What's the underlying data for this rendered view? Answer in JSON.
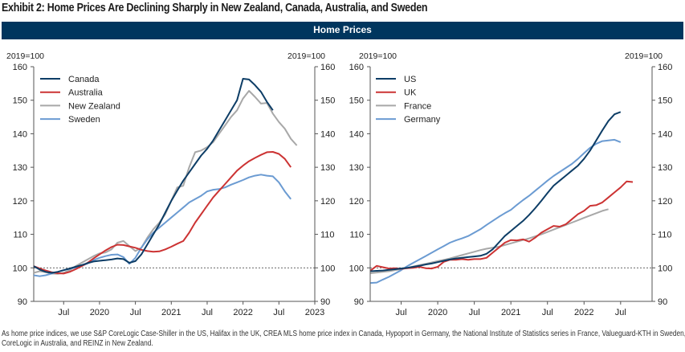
{
  "title": "Exhibit 2: Home Prices Are Declining Sharply in New Zealand, Canada, Australia, and Sweden",
  "banner": "Home Prices",
  "footnote": "As home price indices, we use S&P CoreLogic Case-Shiller in the US, Halifax in the UK, CREA MLS home price index in Canada, Hypoport in Germany, the National Institute of Statistics series in France, Valueguard-KTH in Sweden, CoreLogic in Australia, and REINZ in New Zealand.",
  "colors": {
    "dark_blue": "#0d3d66",
    "red": "#cc3333",
    "gray": "#a8a8a8",
    "light_blue": "#6b9bd2"
  },
  "chart_data": [
    {
      "type": "line",
      "title": "",
      "ylabel_left": "2019=100",
      "ylabel_right": "2019=100",
      "ylim": [
        90,
        160
      ],
      "yticks": [
        90,
        100,
        110,
        120,
        130,
        140,
        150,
        160
      ],
      "xlim": [
        2019.083,
        2023.0
      ],
      "xticks": [
        {
          "t": 2019.5,
          "label": "Jul"
        },
        {
          "t": 2020.0,
          "label": "2020"
        },
        {
          "t": 2020.5,
          "label": "Jul"
        },
        {
          "t": 2021.0,
          "label": "2021"
        },
        {
          "t": 2021.5,
          "label": "Jul"
        },
        {
          "t": 2022.0,
          "label": "2022"
        },
        {
          "t": 2022.5,
          "label": "Jul"
        },
        {
          "t": 2023.0,
          "label": "2023"
        }
      ],
      "reference_line": 100,
      "legend_position": "top-left",
      "start": 2019.083,
      "step_months": 1,
      "series": [
        {
          "name": "Canada",
          "color_key": "dark_blue",
          "values": [
            100.5,
            99.5,
            98.8,
            98.5,
            98.8,
            99.3,
            99.8,
            100.3,
            100.8,
            101.4,
            101.9,
            102.1,
            102.3,
            102.5,
            102.8,
            102.6,
            101.5,
            102.0,
            104.0,
            107.0,
            110.0,
            113.0,
            116.5,
            120.0,
            123.0,
            126.0,
            128.5,
            131.0,
            133.5,
            135.5,
            138.0,
            141.0,
            144.0,
            147.0,
            150.0,
            156.4,
            156.2,
            154.5,
            152.5,
            149.5,
            147.0
          ]
        },
        {
          "name": "Australia",
          "color_key": "red",
          "values": [
            100.5,
            99.8,
            99.2,
            98.7,
            98.4,
            98.3,
            98.8,
            99.6,
            100.5,
            101.5,
            102.8,
            104.0,
            105.2,
            106.2,
            106.9,
            106.8,
            106.4,
            106.0,
            105.4,
            105.0,
            104.8,
            104.9,
            105.5,
            106.3,
            107.2,
            108.0,
            110.5,
            113.5,
            116.0,
            118.5,
            121.0,
            123.0,
            125.0,
            127.0,
            129.0,
            130.5,
            131.8,
            132.8,
            133.7,
            134.5,
            134.6,
            134.0,
            132.5,
            130.0
          ]
        },
        {
          "name": "New Zealand",
          "color_key": "gray",
          "values": [
            98.5,
            99.0,
            98.7,
            98.3,
            98.2,
            98.5,
            99.3,
            100.5,
            101.5,
            102.5,
            103.5,
            104.3,
            104.6,
            105.5,
            107.5,
            108.0,
            106.5,
            105.0,
            106.0,
            109.0,
            111.5,
            113.5,
            116.0,
            120.0,
            124.0,
            124.5,
            130.0,
            134.5,
            135.0,
            136.0,
            137.5,
            140.0,
            142.5,
            145.0,
            147.0,
            150.5,
            152.8,
            151.0,
            149.0,
            149.2,
            146.0,
            143.5,
            141.5,
            138.5,
            136.5
          ]
        },
        {
          "name": "Sweden",
          "color_key": "light_blue",
          "values": [
            97.8,
            97.5,
            97.8,
            98.3,
            98.8,
            99.3,
            99.7,
            100.1,
            100.6,
            101.3,
            102.3,
            103.0,
            103.5,
            103.9,
            104.0,
            103.2,
            101.2,
            103.0,
            106.0,
            108.5,
            110.5,
            112.0,
            113.5,
            115.0,
            116.5,
            118.0,
            119.5,
            120.5,
            121.5,
            122.8,
            123.3,
            123.5,
            124.0,
            124.8,
            125.5,
            126.2,
            127.0,
            127.5,
            127.8,
            127.5,
            127.3,
            125.5,
            122.8,
            120.5
          ]
        }
      ]
    },
    {
      "type": "line",
      "title": "",
      "ylabel_left": "2019=100",
      "ylabel_right": "2019=100",
      "ylim": [
        90,
        160
      ],
      "yticks": [
        90,
        100,
        110,
        120,
        130,
        140,
        150,
        160
      ],
      "xlim": [
        2019.077,
        2022.93
      ],
      "xticks": [
        {
          "t": 2019.5,
          "label": "Jul"
        },
        {
          "t": 2020.0,
          "label": "2020"
        },
        {
          "t": 2020.5,
          "label": "Jul"
        },
        {
          "t": 2021.0,
          "label": "2021"
        },
        {
          "t": 2021.5,
          "label": "Jul"
        },
        {
          "t": 2022.0,
          "label": "2022"
        },
        {
          "t": 2022.5,
          "label": "Jul"
        }
      ],
      "reference_line": 100,
      "legend_position": "top-left",
      "start": 2019.083,
      "step_months": 1,
      "series": [
        {
          "name": "US",
          "color_key": "dark_blue",
          "values": [
            99.0,
            99.1,
            99.2,
            99.4,
            99.6,
            99.8,
            100.0,
            100.3,
            100.6,
            101.0,
            101.3,
            101.7,
            102.1,
            102.5,
            102.8,
            103.0,
            103.2,
            103.4,
            103.6,
            104.2,
            105.5,
            107.5,
            109.5,
            111.0,
            112.5,
            114.0,
            115.8,
            117.8,
            120.0,
            122.3,
            124.5,
            126.0,
            127.5,
            129.0,
            130.5,
            132.5,
            135.0,
            138.0,
            141.0,
            143.8,
            145.8,
            146.5
          ]
        },
        {
          "name": "UK",
          "color_key": "red",
          "values": [
            99.2,
            100.6,
            100.2,
            99.8,
            99.9,
            99.7,
            99.9,
            100.0,
            100.3,
            99.9,
            99.8,
            100.3,
            101.8,
            102.4,
            102.4,
            102.6,
            102.4,
            102.6,
            102.6,
            103.0,
            104.5,
            106.0,
            107.5,
            108.3,
            108.2,
            108.5,
            107.8,
            109.0,
            110.5,
            111.5,
            112.5,
            112.3,
            113.0,
            114.5,
            116.0,
            117.0,
            118.5,
            118.7,
            119.5,
            121.0,
            122.5,
            124.0,
            125.8,
            125.6
          ]
        },
        {
          "name": "France",
          "color_key": "gray",
          "values": [
            98.4,
            98.6,
            98.8,
            99.0,
            99.3,
            99.6,
            100.0,
            100.4,
            100.8,
            101.2,
            101.6,
            102.0,
            102.4,
            102.8,
            103.3,
            103.8,
            104.3,
            104.8,
            105.3,
            105.7,
            106.0,
            106.3,
            106.8,
            107.3,
            107.8,
            108.3,
            108.8,
            109.4,
            110.0,
            110.7,
            111.4,
            112.1,
            112.8,
            113.5,
            114.2,
            114.9,
            115.6,
            116.3,
            117.0,
            117.5
          ]
        },
        {
          "name": "Germany",
          "color_key": "light_blue",
          "values": [
            95.5,
            95.6,
            96.5,
            97.3,
            98.3,
            99.3,
            100.5,
            101.5,
            102.5,
            103.5,
            104.5,
            105.5,
            106.5,
            107.5,
            108.2,
            108.8,
            109.5,
            110.5,
            111.5,
            112.8,
            114.0,
            115.2,
            116.3,
            117.3,
            118.8,
            120.2,
            121.5,
            123.0,
            124.5,
            126.0,
            127.4,
            128.6,
            129.8,
            131.0,
            132.5,
            134.2,
            135.8,
            137.0,
            137.8,
            138.0,
            138.2,
            137.5
          ]
        }
      ]
    }
  ]
}
